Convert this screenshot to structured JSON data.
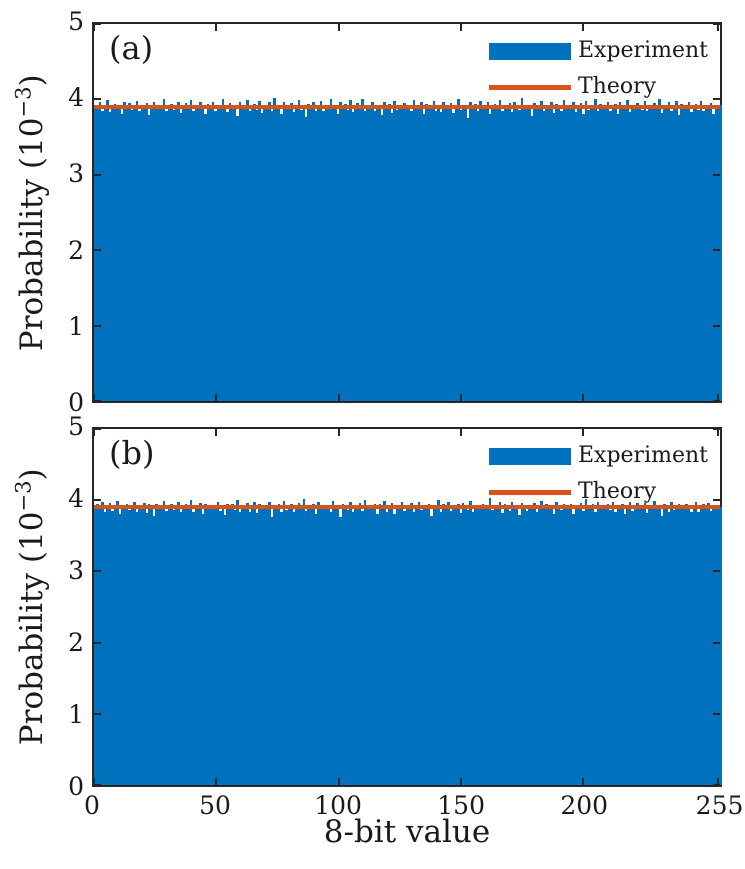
{
  "figure": {
    "background": "#ffffff",
    "text_color": "#1a1a1a",
    "axis_color": "#262626"
  },
  "chart_data": [
    {
      "type": "bar",
      "panel_label": "(a)",
      "xlabel": "",
      "ylabel": "Probability (10⁻³)",
      "ylabel_prefix": "Probability (10",
      "ylabel_exp": "−3",
      "ylabel_suffix": ")",
      "xlim": [
        0,
        256
      ],
      "ylim": [
        0,
        5
      ],
      "xticks": [
        0,
        50,
        100,
        150,
        200,
        255
      ],
      "yticks": [
        0,
        1,
        2,
        3,
        4,
        5
      ],
      "show_xtick_labels": false,
      "units": "probability in units of 10^-3",
      "grid": false,
      "legend": {
        "position": "top-right",
        "entries": [
          "Experiment",
          "Theory"
        ]
      },
      "series": [
        {
          "name": "Experiment",
          "kind": "histogram-bars",
          "color": "#0072BD",
          "n_bins": 256,
          "values": [
            3.93,
            3.88,
            3.96,
            3.85,
            3.91,
            3.99,
            3.83,
            3.9,
            3.94,
            3.87,
            3.92,
            3.8,
            3.97,
            3.89,
            3.95,
            3.86,
            3.9,
            3.98,
            3.84,
            3.92,
            3.88,
            3.95,
            3.79,
            3.91,
            3.96,
            3.87,
            3.93,
            3.89,
            4.0,
            3.85,
            3.9,
            3.94,
            3.86,
            3.92,
            3.97,
            3.82,
            3.9,
            3.95,
            3.88,
            3.99,
            3.84,
            3.91,
            3.87,
            3.96,
            3.9,
            3.81,
            3.94,
            3.89,
            3.97,
            3.85,
            3.92,
            3.88,
            4.01,
            3.9,
            3.83,
            3.95,
            3.89,
            3.93,
            3.78,
            3.96,
            3.91,
            3.87,
            3.99,
            3.84,
            3.9,
            3.94,
            3.86,
            3.98,
            3.82,
            3.92,
            3.89,
            3.96,
            3.85,
            4.02,
            3.88,
            3.93,
            3.8,
            3.97,
            3.91,
            3.87,
            3.95,
            3.83,
            3.9,
            3.99,
            3.86,
            3.92,
            3.77,
            3.94,
            3.89,
            3.97,
            3.84,
            3.91,
            3.98,
            3.85,
            3.93,
            3.88,
            4.0,
            3.87,
            3.92,
            3.81,
            3.96,
            3.9,
            3.94,
            3.86,
            3.99,
            3.83,
            3.91,
            3.95,
            3.88,
            4.01,
            3.84,
            3.92,
            3.89,
            3.97,
            3.85,
            3.93,
            3.9,
            3.79,
            3.96,
            3.88,
            3.94,
            3.82,
            3.98,
            3.86,
            3.92,
            3.9,
            3.95,
            3.87,
            3.93,
            3.84,
            3.99,
            3.89,
            3.91,
            3.96,
            3.8,
            3.94,
            3.87,
            3.92,
            3.98,
            3.85,
            3.9,
            3.83,
            3.97,
            3.91,
            3.88,
            3.95,
            3.82,
            3.92,
            4.0,
            3.86,
            3.93,
            3.89,
            3.76,
            3.96,
            3.9,
            3.94,
            3.84,
            3.98,
            3.87,
            3.92,
            3.96,
            3.81,
            3.9,
            3.94,
            3.88,
            3.99,
            3.85,
            3.92,
            3.89,
            3.95,
            3.83,
            3.97,
            3.91,
            3.86,
            4.02,
            3.88,
            3.93,
            3.9,
            3.78,
            3.95,
            3.87,
            3.92,
            3.98,
            3.84,
            3.91,
            3.89,
            3.96,
            3.82,
            3.94,
            3.9,
            3.85,
            3.99,
            3.87,
            3.93,
            3.89,
            3.96,
            3.83,
            3.91,
            3.95,
            3.8,
            3.98,
            3.86,
            3.92,
            3.9,
            4.01,
            3.84,
            3.94,
            3.88,
            3.91,
            3.97,
            3.85,
            3.9,
            3.94,
            3.81,
            3.96,
            3.88,
            3.93,
            3.99,
            3.83,
            3.92,
            3.87,
            3.95,
            3.9,
            3.86,
            3.98,
            3.84,
            3.92,
            3.89,
            3.95,
            3.87,
            4.0,
            3.82,
            3.93,
            3.9,
            3.96,
            3.85,
            3.91,
            3.98,
            3.79,
            3.94,
            3.88,
            3.92,
            3.96,
            3.83,
            3.9,
            3.94,
            3.86,
            3.98,
            3.85,
            3.91,
            3.89,
            3.95,
            3.81,
            3.93,
            3.9,
            3.92
          ]
        },
        {
          "name": "Theory",
          "kind": "hline",
          "color": "#D95319",
          "value": 3.906
        }
      ]
    },
    {
      "type": "bar",
      "panel_label": "(b)",
      "xlabel": "8-bit value",
      "ylabel": "Probability (10⁻³)",
      "ylabel_prefix": "Probability (10",
      "ylabel_exp": "−3",
      "ylabel_suffix": ")",
      "xlim": [
        0,
        256
      ],
      "ylim": [
        0,
        5
      ],
      "xticks": [
        0,
        50,
        100,
        150,
        200,
        255
      ],
      "yticks": [
        0,
        1,
        2,
        3,
        4,
        5
      ],
      "show_xtick_labels": true,
      "units": "probability in units of 10^-3",
      "grid": false,
      "legend": {
        "position": "top-right",
        "entries": [
          "Experiment",
          "Theory"
        ]
      },
      "series": [
        {
          "name": "Experiment",
          "kind": "histogram-bars",
          "color": "#0072BD",
          "n_bins": 256,
          "values": [
            3.89,
            3.94,
            3.87,
            3.98,
            3.83,
            3.92,
            3.96,
            3.85,
            3.91,
            3.99,
            3.8,
            3.93,
            3.88,
            3.95,
            3.86,
            3.92,
            3.97,
            3.84,
            3.91,
            3.89,
            3.96,
            3.82,
            3.94,
            3.9,
            3.78,
            3.95,
            3.87,
            3.93,
            3.99,
            3.85,
            3.9,
            3.94,
            3.86,
            3.92,
            3.98,
            3.83,
            3.9,
            3.95,
            3.88,
            4.01,
            3.84,
            3.92,
            3.89,
            3.96,
            3.81,
            3.94,
            3.9,
            3.87,
            3.93,
            3.89,
            3.97,
            3.85,
            3.91,
            3.79,
            3.95,
            3.88,
            3.94,
            3.86,
            4.0,
            3.83,
            3.92,
            3.9,
            3.96,
            3.84,
            3.91,
            3.98,
            3.82,
            3.94,
            3.89,
            3.93,
            3.87,
            3.97,
            3.76,
            3.92,
            3.9,
            3.95,
            3.84,
            3.99,
            3.86,
            3.91,
            3.95,
            3.83,
            3.9,
            3.96,
            3.88,
            4.02,
            3.85,
            3.92,
            3.89,
            3.94,
            3.81,
            3.97,
            3.91,
            3.87,
            3.93,
            3.9,
            3.84,
            3.99,
            3.88,
            3.92,
            3.77,
            3.95,
            3.9,
            3.86,
            3.98,
            3.83,
            3.93,
            3.89,
            3.96,
            3.85,
            4.01,
            3.88,
            3.92,
            3.9,
            3.95,
            3.81,
            3.94,
            3.87,
            3.99,
            3.84,
            3.91,
            3.96,
            3.8,
            3.93,
            3.88,
            3.97,
            3.85,
            3.92,
            3.89,
            3.96,
            3.83,
            3.91,
            3.98,
            3.86,
            3.93,
            3.9,
            3.95,
            3.78,
            3.92,
            3.87,
            4.0,
            3.84,
            3.94,
            3.89,
            3.97,
            3.85,
            3.92,
            3.88,
            3.94,
            3.82,
            3.96,
            3.91,
            3.86,
            3.99,
            3.84,
            3.9,
            3.93,
            3.89,
            3.95,
            3.87,
            3.91,
            4.03,
            3.86,
            3.93,
            3.89,
            3.97,
            3.82,
            3.94,
            3.9,
            3.85,
            3.98,
            3.88,
            3.92,
            3.79,
            3.96,
            3.9,
            3.85,
            3.93,
            3.9,
            3.96,
            3.84,
            3.91,
            3.99,
            3.87,
            3.94,
            3.88,
            3.92,
            3.81,
            3.97,
            3.9,
            3.86,
            3.95,
            3.92,
            3.88,
            3.95,
            3.8,
            3.93,
            3.9,
            3.96,
            3.85,
            4.02,
            3.87,
            3.91,
            3.94,
            3.83,
            3.98,
            3.89,
            3.92,
            3.9,
            3.94,
            3.86,
            3.98,
            3.84,
            3.92,
            3.89,
            3.95,
            3.81,
            3.93,
            3.97,
            3.85,
            3.9,
            3.96,
            3.88,
            3.91,
            3.96,
            3.82,
            3.93,
            3.89,
            3.99,
            3.87,
            3.92,
            3.78,
            3.95,
            3.9,
            3.84,
            3.98,
            3.86,
            3.91,
            3.94,
            3.88,
            3.87,
            3.95,
            3.91,
            3.84,
            3.92,
            3.97,
            3.83,
            3.9,
            3.94,
            3.88,
            3.96,
            3.85,
            3.93,
            3.89,
            3.91,
            3.9
          ]
        },
        {
          "name": "Theory",
          "kind": "hline",
          "color": "#D95319",
          "value": 3.906
        }
      ]
    }
  ]
}
